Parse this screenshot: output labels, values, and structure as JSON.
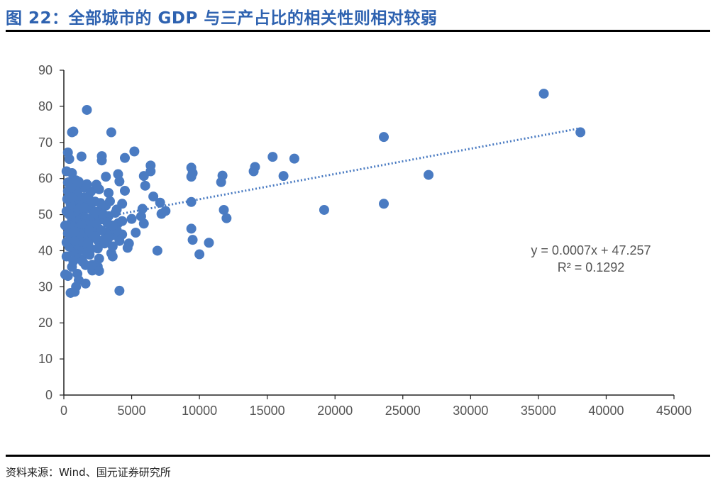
{
  "figure": {
    "title": "图 22：全部城市的 GDP 与三产占比的相关性则相对较弱",
    "source": "资料来源：Wind、国元证券研究所"
  },
  "colors": {
    "title": "#2e62b0",
    "points": "#4a7bc2",
    "trend": "#4a7bc2"
  },
  "chart_data": {
    "type": "scatter",
    "title": "",
    "xlabel": "",
    "ylabel": "",
    "xlim": [
      0,
      45000
    ],
    "ylim": [
      0,
      90
    ],
    "xticks": [
      0,
      5000,
      10000,
      15000,
      20000,
      25000,
      30000,
      35000,
      40000,
      45000
    ],
    "yticks": [
      0,
      10,
      20,
      30,
      40,
      50,
      60,
      70,
      80,
      90
    ],
    "grid": false,
    "legend": "none",
    "trendline": {
      "type": "linear",
      "slope": 0.0007,
      "intercept": 47.257,
      "x_range": [
        500,
        38100
      ],
      "style": "dotted"
    },
    "annotation": {
      "equation": "y = 0.0007x  + 47.257",
      "r_squared": "R² = 0.1292"
    },
    "series": [
      {
        "points": [
          [
            35400,
            83.5
          ],
          [
            38100,
            72.8
          ],
          [
            23600,
            71.5
          ],
          [
            26900,
            61
          ],
          [
            23600,
            53
          ],
          [
            19200,
            51.3
          ],
          [
            17000,
            65.5
          ],
          [
            15400,
            66
          ],
          [
            16200,
            60.7
          ],
          [
            14100,
            63.2
          ],
          [
            14000,
            62
          ],
          [
            11700,
            60.8
          ],
          [
            11600,
            59
          ],
          [
            11800,
            51.3
          ],
          [
            12000,
            49
          ],
          [
            9400,
            63
          ],
          [
            9500,
            61.5
          ],
          [
            9400,
            60.5
          ],
          [
            9400,
            53.5
          ],
          [
            9400,
            46.1
          ],
          [
            9500,
            43
          ],
          [
            10000,
            39
          ],
          [
            10700,
            42.2
          ],
          [
            1700,
            79
          ],
          [
            3500,
            72.8
          ],
          [
            600,
            72.8
          ],
          [
            700,
            73
          ],
          [
            5200,
            67.5
          ],
          [
            2800,
            66.2
          ],
          [
            4500,
            65.7
          ],
          [
            1300,
            66.1
          ],
          [
            300,
            67.2
          ],
          [
            400,
            65.4
          ],
          [
            2800,
            65
          ],
          [
            3100,
            60.5
          ],
          [
            4000,
            61.2
          ],
          [
            6400,
            63.6
          ],
          [
            6400,
            62
          ],
          [
            5900,
            60.7
          ],
          [
            4100,
            59.2
          ],
          [
            6000,
            58
          ],
          [
            6600,
            55
          ],
          [
            7100,
            53.3
          ],
          [
            4300,
            53
          ],
          [
            3300,
            56
          ],
          [
            4500,
            56.6
          ],
          [
            2600,
            57
          ],
          [
            5800,
            51.6
          ],
          [
            7500,
            51
          ],
          [
            7200,
            50.2
          ],
          [
            5700,
            49.5
          ],
          [
            5900,
            47.5
          ],
          [
            5000,
            48.8
          ],
          [
            5300,
            45
          ],
          [
            4300,
            44.5
          ],
          [
            4800,
            42
          ],
          [
            4700,
            40.8
          ],
          [
            3500,
            39.3
          ],
          [
            6900,
            40
          ],
          [
            3600,
            38.4
          ],
          [
            2600,
            37.8
          ],
          [
            2500,
            35.6
          ],
          [
            2100,
            34.5
          ],
          [
            1900,
            38.9
          ],
          [
            2600,
            34.4
          ],
          [
            1600,
            36
          ],
          [
            1000,
            33.6
          ],
          [
            1100,
            31.8
          ],
          [
            900,
            30
          ],
          [
            1600,
            30.9
          ],
          [
            800,
            28.6
          ],
          [
            500,
            28.3
          ],
          [
            4100,
            28.9
          ],
          [
            100,
            33.4
          ],
          [
            300,
            33
          ],
          [
            600,
            35.5
          ],
          [
            200,
            38.4
          ],
          [
            100,
            47
          ],
          [
            200,
            50.9
          ],
          [
            300,
            56.5
          ],
          [
            400,
            59
          ],
          [
            200,
            62
          ],
          [
            600,
            61.5
          ],
          [
            900,
            59.5
          ],
          [
            1200,
            58
          ],
          [
            1500,
            57.5
          ],
          [
            700,
            55.5
          ],
          [
            1100,
            54
          ],
          [
            1800,
            55
          ],
          [
            2300,
            53.6
          ],
          [
            2000,
            51.5
          ],
          [
            1400,
            50.5
          ],
          [
            900,
            49.8
          ],
          [
            600,
            48.4
          ],
          [
            400,
            47.1
          ],
          [
            1000,
            46.5
          ],
          [
            1300,
            45.7
          ],
          [
            1700,
            44.5
          ],
          [
            2100,
            43.8
          ],
          [
            2500,
            42.9
          ],
          [
            3000,
            42
          ],
          [
            3600,
            41.2
          ],
          [
            1200,
            40.3
          ],
          [
            700,
            39.6
          ],
          [
            400,
            41.1
          ],
          [
            1600,
            41.8
          ],
          [
            2200,
            47.3
          ],
          [
            2800,
            48.7
          ],
          [
            3300,
            49.6
          ],
          [
            3800,
            50.5
          ],
          [
            2700,
            51.2
          ],
          [
            3100,
            52.5
          ],
          [
            1900,
            52.8
          ],
          [
            800,
            52.1
          ],
          [
            1400,
            53.4
          ],
          [
            500,
            44.2
          ],
          [
            900,
            43.1
          ],
          [
            1500,
            43
          ],
          [
            2000,
            40.5
          ],
          [
            2400,
            45.1
          ],
          [
            3500,
            46.5
          ],
          [
            4000,
            47.6
          ],
          [
            3700,
            44.3
          ],
          [
            3100,
            45.1
          ],
          [
            2600,
            46
          ],
          [
            1800,
            47.1
          ],
          [
            1200,
            48.6
          ],
          [
            700,
            46.3
          ],
          [
            300,
            44.8
          ],
          [
            200,
            42.3
          ],
          [
            1000,
            41.7
          ],
          [
            2200,
            49.9
          ],
          [
            2900,
            50.1
          ],
          [
            3400,
            53.7
          ],
          [
            1500,
            54.8
          ],
          [
            1000,
            56.2
          ],
          [
            600,
            57.8
          ],
          [
            300,
            58.9
          ],
          [
            1300,
            42.5
          ],
          [
            1900,
            45.5
          ],
          [
            2400,
            47.6
          ],
          [
            3200,
            47.8
          ],
          [
            4300,
            48.2
          ],
          [
            3000,
            43.2
          ],
          [
            2500,
            40.6
          ],
          [
            1700,
            39.2
          ],
          [
            1100,
            37.9
          ],
          [
            700,
            37.1
          ],
          [
            1400,
            36.9
          ],
          [
            2100,
            36.1
          ],
          [
            800,
            42.7
          ],
          [
            1600,
            49.1
          ],
          [
            2300,
            50.8
          ],
          [
            2700,
            53.2
          ],
          [
            1100,
            51.6
          ],
          [
            500,
            52.9
          ],
          [
            250,
            54.3
          ],
          [
            1200,
            44.7
          ],
          [
            1800,
            42.2
          ],
          [
            2800,
            45.6
          ],
          [
            3300,
            43.6
          ],
          [
            3900,
            45.7
          ],
          [
            4100,
            42.7
          ],
          [
            1900,
            48.3
          ],
          [
            1300,
            47.4
          ],
          [
            800,
            45.3
          ],
          [
            400,
            50
          ],
          [
            2000,
            56.4
          ],
          [
            1700,
            58.4
          ],
          [
            1100,
            59.1
          ],
          [
            600,
            54.7
          ],
          [
            2400,
            58.3
          ],
          [
            3900,
            51.4
          ],
          [
            2300,
            44
          ],
          [
            1500,
            51.9
          ],
          [
            3600,
            47
          ]
        ]
      }
    ]
  }
}
